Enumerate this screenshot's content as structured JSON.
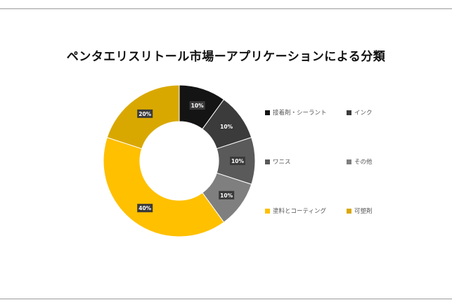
{
  "chart_data": {
    "type": "pie",
    "title": "ペンタエリスリトール市場ーアプリケーションによる分類",
    "categories": [
      "接着剤・シーラント",
      "インク",
      "ワニス",
      "その他",
      "塗料とコーティング",
      "可塑剤"
    ],
    "values": [
      10,
      10,
      10,
      10,
      40,
      20
    ],
    "data_labels": [
      "10%",
      "10%",
      "10%",
      "10%",
      "40%",
      "20%"
    ],
    "colors": [
      "#141414",
      "#3b3b3b",
      "#5a5a5a",
      "#7f7f7f",
      "#ffc000",
      "#d9a800"
    ],
    "legend_position": "right",
    "donut": true
  }
}
